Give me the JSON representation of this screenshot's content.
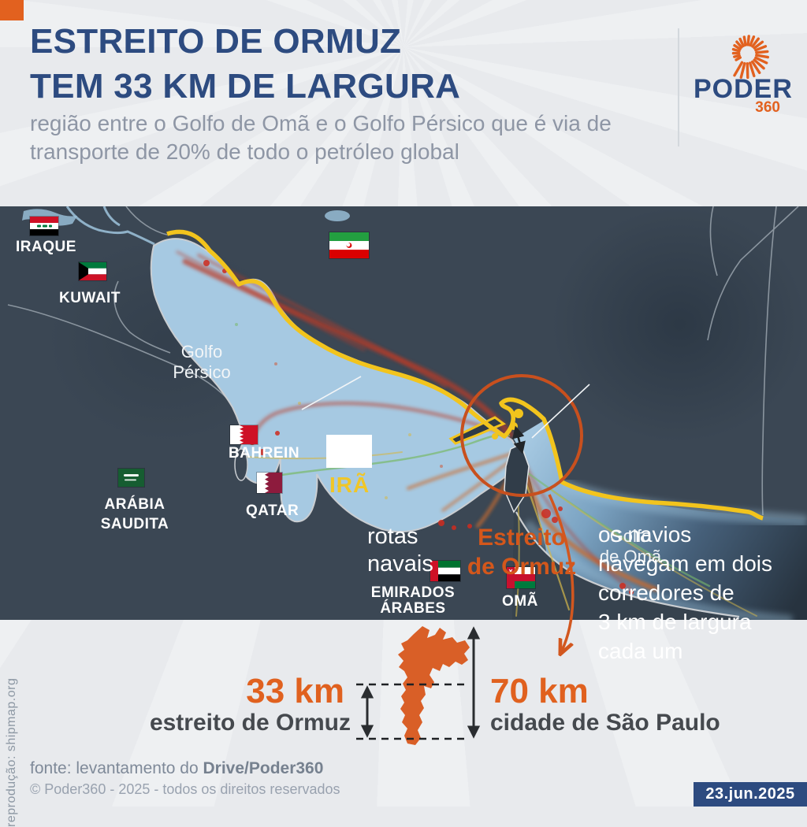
{
  "header": {
    "title": "ESTREITO DE ORMUZ\nTEM 33 KM DE LARGURA",
    "subtitle": "região entre o Golfo de Omã e o Golfo Pérsico que é via de\ntransporte de 20% de todo o petróleo global",
    "accent_color": "#e2611f",
    "title_color": "#2d4b80"
  },
  "logo": {
    "word": "PODER",
    "suffix": "360"
  },
  "map": {
    "credit": "reprodução: shipmap.org",
    "labels": {
      "iraq": "IRAQUE",
      "kuwait": "KUWAIT",
      "iran": "IRÃ",
      "bahrain": "BAHREIN",
      "qatar": "QATAR",
      "saudi": "ARÁBIA\nSAUDITA",
      "uae": "EMIRADOS\nÁRABES",
      "oman": "OMÃ",
      "persian_gulf": "Golfo\nPérsico",
      "gulf_of_oman": "Golfo\nde Omã",
      "routes": "rotas\nnavais",
      "strait": "Estreito\nde Ormuz",
      "annotation": "os navios\nnavegam em dois\ncorredores de\n3 km de largura\ncada um"
    },
    "colors": {
      "land": "#3b4754",
      "gulf_water": "#a6c9e2",
      "iran_coast_yellow": "#f2c41d",
      "route_red": "#bc3a28",
      "route_orange": "#cc6c2e",
      "strait_circle_orange": "#c8501e",
      "iran_label_yellow": "#f0c627"
    }
  },
  "comparison": {
    "strait_value": "33 km",
    "strait_label": "estreito de Ormuz",
    "city_value": "70 km",
    "city_label": "cidade de São Paulo",
    "shape_color": "#d95f27",
    "value_color": "#e0611f"
  },
  "footer": {
    "source_prefix": "fonte: levantamento do ",
    "source_bold": "Drive/Poder360",
    "copyright": "© Poder360 - 2025 - todos os direitos reservados",
    "date": "23.jun.2025"
  }
}
